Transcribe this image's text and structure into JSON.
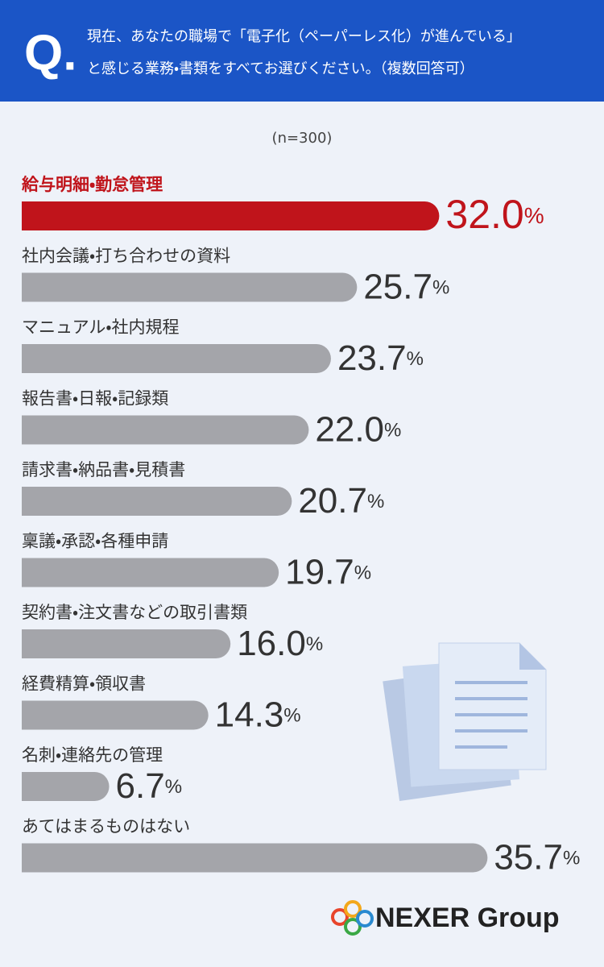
{
  "header": {
    "mark": "Q.",
    "lines": [
      "現在、あなたの職場で「電子化（ペーパーレス化）が進んでいる」",
      "と感じる業務・書類をすべてお選びください。（複数回答可）"
    ]
  },
  "chart_data": {
    "type": "bar",
    "orientation": "horizontal",
    "subtitle": "(n=300)",
    "categories": [
      "給与明細・勤怠管理",
      "社内会議・打ち合わせの資料",
      "マニュアル・社内規程",
      "報告書・日報・記録類",
      "請求書・納品書・見積書",
      "稟議・承認・各種申請",
      "契約書・注文書などの取引書類",
      "経費精算・領収書",
      "名刺・連絡先の管理",
      "あてはまるものはない"
    ],
    "values": [
      32.0,
      25.7,
      23.7,
      22.0,
      20.7,
      19.7,
      16.0,
      14.3,
      6.7,
      35.7
    ],
    "value_labels": [
      "32.0%",
      "25.7%",
      "23.7%",
      "22.0%",
      "20.7%",
      "19.7%",
      "16.0%",
      "14.3%",
      "6.7%",
      "35.7%"
    ],
    "colors": [
      "#c0141b",
      "#a4a5aa",
      "#a4a5aa",
      "#a4a5aa",
      "#a4a5aa",
      "#a4a5aa",
      "#a4a5aa",
      "#a4a5aa",
      "#a4a5aa",
      "#a4a5aa"
    ]
  },
  "logo": "NEXER Group"
}
